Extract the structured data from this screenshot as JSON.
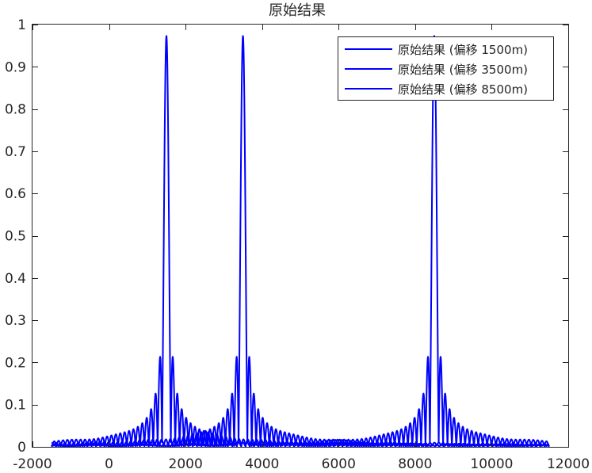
{
  "chart_data": {
    "type": "line",
    "title": "原始结果",
    "xlabel": "",
    "ylabel": "",
    "xlim": [
      -2000,
      12000
    ],
    "ylim": [
      0,
      1
    ],
    "xticks": [
      "-2000",
      "0",
      "2000",
      "4000",
      "6000",
      "8000",
      "10000",
      "12000"
    ],
    "yticks": [
      "0",
      "0.1",
      "0.2",
      "0.3",
      "0.4",
      "0.5",
      "0.6",
      "0.7",
      "0.8",
      "0.9",
      "1"
    ],
    "grid": false,
    "legend_position": "top-right",
    "line_color": "#0000ff",
    "series": [
      {
        "name": "原始结果 (偏移 1500m)",
        "center": 1500,
        "x_range": [
          -1500,
          11500
        ],
        "peak": 1.0,
        "first_sidelobes": 0.21
      },
      {
        "name": "原始结果 (偏移 3500m)",
        "center": 3500,
        "x_range": [
          -1500,
          11500
        ],
        "peak": 1.0,
        "first_sidelobes": 0.21
      },
      {
        "name": "原始结果 (偏移 8500m)",
        "center": 8500,
        "x_range": [
          -1500,
          11500
        ],
        "peak": 1.0,
        "first_sidelobes": 0.21
      }
    ]
  }
}
